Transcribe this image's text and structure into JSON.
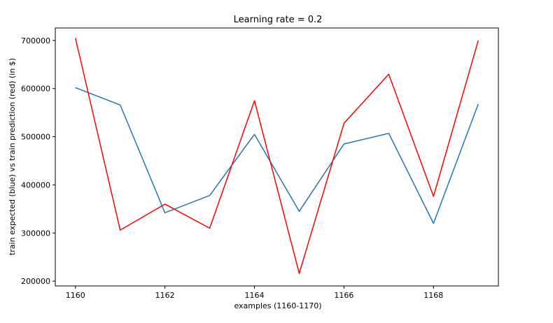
{
  "chart_data": {
    "type": "line",
    "title": "Learning rate = 0.2",
    "xlabel": "examples (1160-1170)",
    "ylabel": "train expected (blue) vs train prediction (red) (in $)",
    "x": [
      1160,
      1161,
      1162,
      1163,
      1164,
      1165,
      1166,
      1167,
      1168,
      1169
    ],
    "xlim": [
      1159.55,
      1169.45
    ],
    "ylim": [
      190000,
      726000
    ],
    "xticks": [
      1160,
      1162,
      1164,
      1166,
      1168
    ],
    "xtick_labels": [
      "1160",
      "1162",
      "1164",
      "1166",
      "1168"
    ],
    "yticks": [
      200000,
      300000,
      400000,
      500000,
      600000,
      700000
    ],
    "ytick_labels": [
      "200000",
      "300000",
      "400000",
      "500000",
      "600000",
      "700000"
    ],
    "grid": false,
    "series": [
      {
        "color": "#1f77b4",
        "values": [
          602000,
          566000,
          342000,
          378000,
          505000,
          345000,
          485000,
          507000,
          320000,
          568000
        ]
      },
      {
        "color": "#ff0000",
        "values": [
          705000,
          306000,
          360000,
          310000,
          575000,
          216000,
          528000,
          630000,
          376000,
          700000
        ]
      }
    ]
  }
}
